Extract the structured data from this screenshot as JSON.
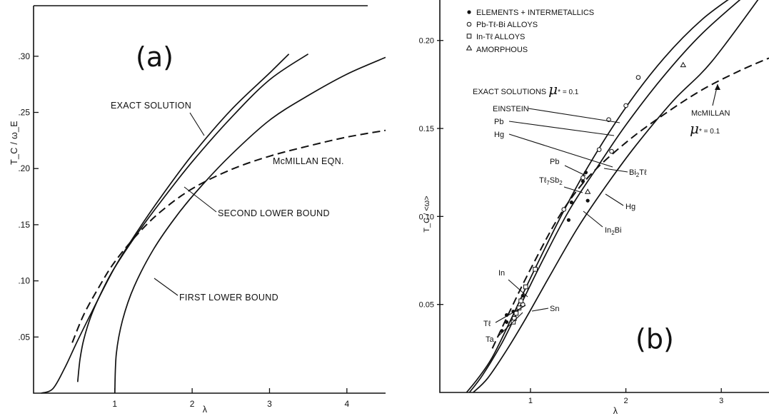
{
  "panel_a": {
    "tag": "(a)"
  },
  "panel_b": {
    "tag": "(b)"
  },
  "chart_data": [
    {
      "type": "line",
      "panel": "(a)",
      "title": "",
      "xlabel": "λ",
      "ylabel": "T_C / ω_E",
      "xlim": [
        -0.05,
        4.5
      ],
      "ylim": [
        0,
        0.345
      ],
      "x_ticks": [
        "1",
        "2",
        "3",
        "4"
      ],
      "y_ticks": [
        ".05",
        ".10",
        ".15",
        ".20",
        ".25",
        ".30"
      ],
      "grid": false,
      "annotations": [
        "EXACT SOLUTION",
        "McMILLAN EQN.",
        "SECOND LOWER BOUND",
        "FIRST LOWER BOUND"
      ],
      "series": [
        {
          "name": "EXACT SOLUTION",
          "style": "solid",
          "x": [
            0.05,
            0.2,
            0.35,
            0.5,
            0.7,
            1.0,
            1.3,
            1.6,
            2.0,
            2.5,
            3.0,
            3.25
          ],
          "y": [
            0.0,
            0.004,
            0.022,
            0.044,
            0.072,
            0.112,
            0.145,
            0.175,
            0.212,
            0.252,
            0.285,
            0.302
          ]
        },
        {
          "name": "SECOND LOWER BOUND",
          "style": "solid",
          "x": [
            0.52,
            0.55,
            0.6,
            0.7,
            0.85,
            1.0,
            1.3,
            1.6,
            2.0,
            2.5,
            3.0,
            3.5
          ],
          "y": [
            0.01,
            0.03,
            0.048,
            0.07,
            0.093,
            0.112,
            0.143,
            0.171,
            0.206,
            0.245,
            0.279,
            0.302
          ]
        },
        {
          "name": "FIRST LOWER BOUND",
          "style": "solid",
          "x": [
            1.0,
            1.02,
            1.1,
            1.25,
            1.5,
            1.8,
            2.1,
            2.5,
            3.0,
            3.5,
            4.0,
            4.5
          ],
          "y": [
            0.0,
            0.035,
            0.065,
            0.095,
            0.128,
            0.158,
            0.183,
            0.212,
            0.243,
            0.265,
            0.284,
            0.299
          ]
        },
        {
          "name": "McMILLAN EQN.",
          "style": "dashed",
          "x": [
            0.45,
            0.6,
            0.8,
            1.0,
            1.3,
            1.6,
            2.0,
            2.5,
            3.0,
            3.5,
            4.0,
            4.5
          ],
          "y": [
            0.045,
            0.07,
            0.095,
            0.117,
            0.142,
            0.162,
            0.182,
            0.199,
            0.211,
            0.22,
            0.228,
            0.234
          ]
        }
      ]
    },
    {
      "type": "scatter",
      "panel": "(b)",
      "title": "",
      "xlabel": "λ",
      "ylabel": "T_C / <ω>",
      "xlim": [
        0.05,
        3.5
      ],
      "ylim": [
        0,
        0.223
      ],
      "x_ticks": [
        "1",
        "2",
        "3"
      ],
      "y_ticks": [
        "0.05",
        "0.10",
        "0.15",
        "0.20"
      ],
      "grid": false,
      "legend": {
        "position": "top-left",
        "entries": [
          "ELEMENTS + INTERMETALLICS",
          "Pb-Tℓ-Bi ALLOYS",
          "In-Tℓ ALLOYS",
          "AMORPHOUS"
        ]
      },
      "annotations": {
        "exact_prefix": "EXACT SOLUTIONS ",
        "mu": "μ",
        "mu_value": "* = 0.1",
        "mcmillan": "McMILLAN",
        "mcmillan_mu_value": "* = 0.1",
        "labels": [
          "EINSTEIN",
          "Pb",
          "Hg",
          "Pb",
          "Tℓ",
          "7",
          "Sb",
          "2",
          "Bi",
          "2",
          "Tℓ",
          "Hg",
          "In",
          "2",
          "Bi",
          "In",
          "Sn",
          "Tℓ",
          "Ta"
        ]
      },
      "curves": [
        {
          "name": "EINSTEIN",
          "style": "solid",
          "x": [
            0.33,
            0.45,
            0.6,
            0.8,
            1.0,
            1.3,
            1.6,
            2.0,
            2.4,
            2.8,
            3.2
          ],
          "y": [
            0.0,
            0.008,
            0.02,
            0.042,
            0.065,
            0.098,
            0.128,
            0.162,
            0.19,
            0.212,
            0.228
          ]
        },
        {
          "name": "Pb",
          "style": "solid",
          "x": [
            0.36,
            0.5,
            0.7,
            0.9,
            1.1,
            1.4,
            1.7,
            2.0,
            2.4,
            2.8,
            3.3
          ],
          "y": [
            0.0,
            0.01,
            0.028,
            0.05,
            0.072,
            0.103,
            0.128,
            0.152,
            0.18,
            0.204,
            0.228
          ]
        },
        {
          "name": "Hg",
          "style": "solid",
          "x": [
            0.4,
            0.55,
            0.75,
            0.95,
            1.2,
            1.5,
            1.8,
            2.1,
            2.5,
            2.9,
            3.45
          ],
          "y": [
            0.0,
            0.008,
            0.024,
            0.042,
            0.066,
            0.094,
            0.118,
            0.14,
            0.166,
            0.188,
            0.228
          ]
        },
        {
          "name": "McMILLAN μ* = 0.1",
          "style": "dashed",
          "x": [
            0.6,
            0.8,
            1.0,
            1.3,
            1.6,
            2.0,
            2.4,
            2.8,
            3.2,
            3.5
          ],
          "y": [
            0.025,
            0.048,
            0.07,
            0.1,
            0.122,
            0.142,
            0.158,
            0.172,
            0.183,
            0.19
          ]
        }
      ],
      "points": {
        "ELEMENTS + INTERMETALLICS": [
          [
            0.75,
            0.044
          ],
          [
            0.75,
            0.04
          ],
          [
            0.7,
            0.035
          ],
          [
            0.82,
            0.046
          ],
          [
            0.92,
            0.055
          ],
          [
            1.43,
            0.108
          ],
          [
            1.6,
            0.109
          ],
          [
            1.55,
            0.12
          ],
          [
            1.58,
            0.125
          ],
          [
            1.4,
            0.098
          ]
        ],
        "Pb-Tℓ-Bi ALLOYS": [
          [
            1.35,
            0.104
          ],
          [
            1.55,
            0.122
          ],
          [
            1.72,
            0.138
          ],
          [
            1.85,
            0.137
          ],
          [
            1.82,
            0.155
          ],
          [
            2.0,
            0.163
          ],
          [
            2.13,
            0.179
          ],
          [
            0.92,
            0.05
          ]
        ],
        "In-Tℓ ALLOYS": [
          [
            0.83,
            0.042
          ],
          [
            0.85,
            0.045
          ],
          [
            0.88,
            0.048
          ],
          [
            0.9,
            0.052
          ],
          [
            0.95,
            0.06
          ],
          [
            1.05,
            0.07
          ],
          [
            0.82,
            0.04
          ]
        ],
        "AMORPHOUS": [
          [
            1.6,
            0.114
          ],
          [
            2.6,
            0.186
          ]
        ]
      }
    }
  ]
}
